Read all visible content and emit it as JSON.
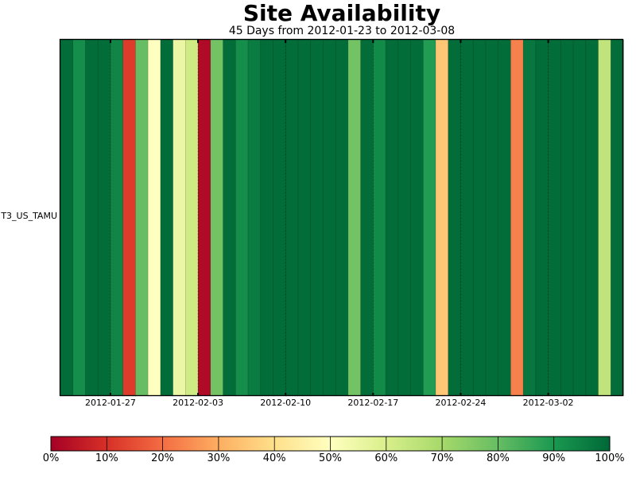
{
  "chart_data": {
    "type": "heatmap",
    "title": "Site Availability",
    "subtitle": "45 Days from 2012-01-23 to 2012-03-08",
    "row_labels": [
      "T3_US_TAMU"
    ],
    "start_date": "2012-01-23",
    "x_tick_labels": [
      {
        "label": "2012-01-27",
        "date": "2012-01-27"
      },
      {
        "label": "2012-02-03",
        "date": "2012-02-03"
      },
      {
        "label": "2012-02-10",
        "date": "2012-02-10"
      },
      {
        "label": "2012-02-17",
        "date": "2012-02-17"
      },
      {
        "label": "2012-02-24",
        "date": "2012-02-24"
      },
      {
        "label": "2012-03-02",
        "date": "2012-03-02"
      }
    ],
    "values": [
      99,
      92,
      99,
      99,
      94,
      12,
      80,
      50,
      99,
      55,
      62,
      2,
      78,
      99,
      92,
      96,
      99,
      99,
      99,
      99,
      99,
      99,
      99,
      78,
      99,
      93,
      99,
      99,
      99,
      89,
      35,
      99,
      99,
      99,
      99,
      99,
      23,
      97,
      99,
      99,
      99,
      99,
      99,
      65,
      99
    ],
    "value_unit": "%",
    "colorbar": {
      "min": 0,
      "max": 100,
      "tick_labels": [
        "0%",
        "10%",
        "20%",
        "30%",
        "40%",
        "50%",
        "60%",
        "70%",
        "80%",
        "90%",
        "100%"
      ],
      "colors": [
        "#a50026",
        "#d73027",
        "#f46d43",
        "#fdae61",
        "#fee08b",
        "#ffffbf",
        "#d9ef8b",
        "#a6d96a",
        "#66bd63",
        "#1a9850",
        "#006837"
      ]
    },
    "grid": true
  }
}
